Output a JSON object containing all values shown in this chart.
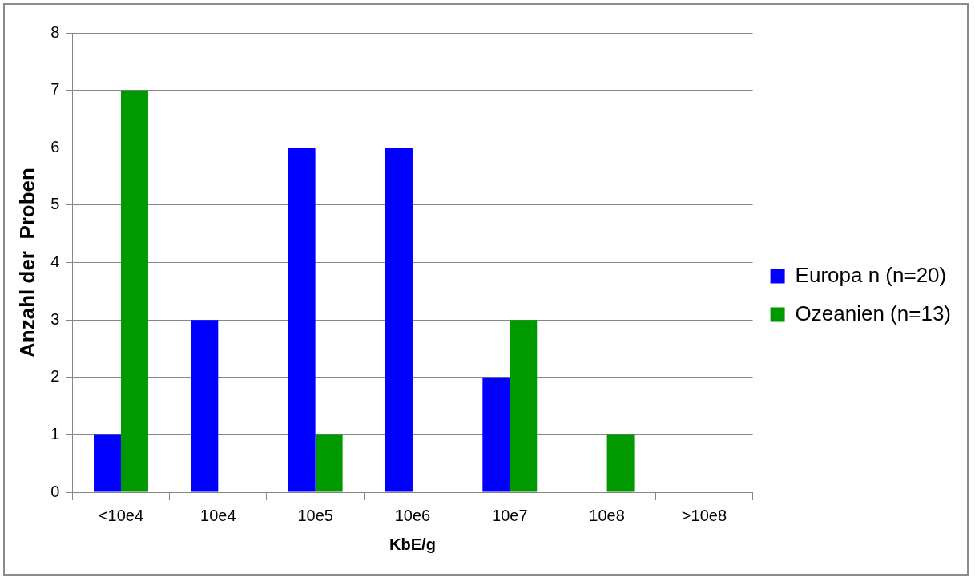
{
  "chart_data": {
    "type": "bar",
    "xlabel": "KbE/g",
    "ylabel": "Anzahl der  Proben",
    "categories": [
      "<10e4",
      "10e4",
      "10e5",
      "10e6",
      "10e7",
      "10e8",
      ">10e8"
    ],
    "series": [
      {
        "name": "Europa n (n=20)",
        "color": "#0000ff",
        "values": [
          1,
          3,
          6,
          6,
          2,
          0,
          0
        ]
      },
      {
        "name": "Ozeanien (n=13)",
        "color": "#009900",
        "values": [
          7,
          0,
          1,
          0,
          3,
          1,
          0
        ]
      }
    ],
    "ylim": [
      0,
      8
    ],
    "yticks": [
      0,
      1,
      2,
      3,
      4,
      5,
      6,
      7,
      8
    ],
    "grid": "y",
    "legend": "right"
  }
}
